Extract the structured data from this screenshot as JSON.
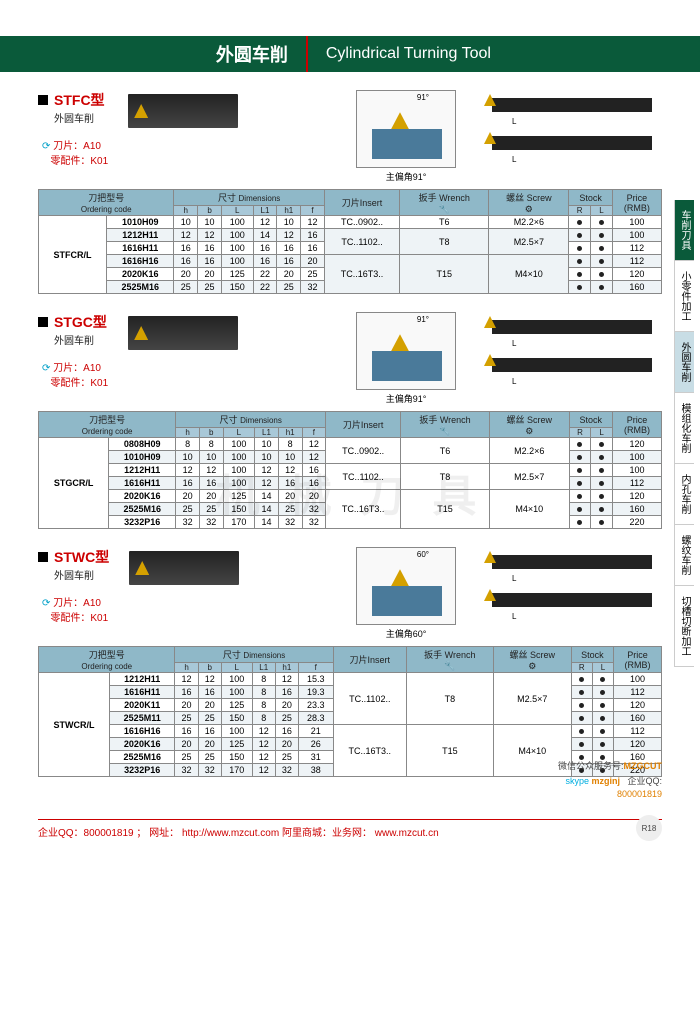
{
  "header": {
    "title_cn": "外圆车削",
    "title_en": "Cylindrical Turning Tool"
  },
  "sections": [
    {
      "id": "stfc",
      "model": "STFC型",
      "sub": "外圆车削",
      "blade": "刀片：A10",
      "parts": "零配件：K01",
      "angle": "主偏角91°",
      "angle_num": "91°",
      "prefix": "STFCR/L",
      "th_order": "刀把型号",
      "th_order_en": "Ordering code",
      "th_dim": "尺寸",
      "th_dim_en": "Dimensions",
      "th_insert": "刀片Insert",
      "th_wrench": "扳手 Wrench",
      "th_screw": "螺丝 Screw",
      "th_stock": "Stock",
      "th_price": "Price",
      "th_price2": "(RMB)",
      "dim_cols": [
        "h",
        "b",
        "L",
        "L1",
        "h1",
        "f"
      ],
      "stock_cols": [
        "R",
        "L"
      ],
      "rows": [
        {
          "code": "1010H09",
          "d": [
            "10",
            "10",
            "100",
            "12",
            "10",
            "12"
          ],
          "ins": "TC..0902..",
          "wr": "T6",
          "sc": "M2.2×6",
          "r": "●",
          "l": "●",
          "p": "100",
          "span": 1
        },
        {
          "code": "1212H11",
          "d": [
            "12",
            "12",
            "100",
            "14",
            "12",
            "16"
          ],
          "ins": "TC..1102..",
          "wr": "T8",
          "sc": "M2.5×7",
          "r": "●",
          "l": "●",
          "p": "100",
          "span": 2,
          "alt": 1
        },
        {
          "code": "1616H11",
          "d": [
            "16",
            "16",
            "100",
            "16",
            "16",
            "16"
          ],
          "r": "●",
          "l": "●",
          "p": "112"
        },
        {
          "code": "1616H16",
          "d": [
            "16",
            "16",
            "100",
            "16",
            "16",
            "20"
          ],
          "ins": "TC..16T3..",
          "wr": "T15",
          "sc": "M4×10",
          "r": "●",
          "l": "●",
          "p": "112",
          "span": 3,
          "alt": 1
        },
        {
          "code": "2020K16",
          "d": [
            "20",
            "20",
            "125",
            "22",
            "20",
            "25"
          ],
          "r": "●",
          "l": "●",
          "p": "120"
        },
        {
          "code": "2525M16",
          "d": [
            "25",
            "25",
            "150",
            "22",
            "25",
            "32"
          ],
          "r": "●",
          "l": "●",
          "p": "160",
          "alt": 1
        }
      ]
    },
    {
      "id": "stgc",
      "model": "STGC型",
      "sub": "外圆车削",
      "blade": "刀片：A10",
      "parts": "零配件：K01",
      "angle": "主偏角91°",
      "angle_num": "91°",
      "prefix": "STGCR/L",
      "rows": [
        {
          "code": "0808H09",
          "d": [
            "8",
            "8",
            "100",
            "10",
            "8",
            "12"
          ],
          "ins": "TC..0902..",
          "wr": "T6",
          "sc": "M2.2×6",
          "r": "●",
          "l": "●",
          "p": "120",
          "span": 2
        },
        {
          "code": "1010H09",
          "d": [
            "10",
            "10",
            "100",
            "10",
            "10",
            "12"
          ],
          "r": "●",
          "l": "●",
          "p": "100",
          "alt": 1
        },
        {
          "code": "1212H11",
          "d": [
            "12",
            "12",
            "100",
            "12",
            "12",
            "16"
          ],
          "ins": "TC..1102..",
          "wr": "T8",
          "sc": "M2.5×7",
          "r": "●",
          "l": "●",
          "p": "100",
          "span": 2
        },
        {
          "code": "1616H11",
          "d": [
            "16",
            "16",
            "100",
            "12",
            "16",
            "16"
          ],
          "r": "●",
          "l": "●",
          "p": "112",
          "alt": 1
        },
        {
          "code": "2020K16",
          "d": [
            "20",
            "20",
            "125",
            "14",
            "20",
            "20"
          ],
          "ins": "TC..16T3..",
          "wr": "T15",
          "sc": "M4×10",
          "r": "●",
          "l": "●",
          "p": "120",
          "span": 3
        },
        {
          "code": "2525M16",
          "d": [
            "25",
            "25",
            "150",
            "14",
            "25",
            "32"
          ],
          "r": "●",
          "l": "●",
          "p": "160",
          "alt": 1
        },
        {
          "code": "3232P16",
          "d": [
            "32",
            "32",
            "170",
            "14",
            "32",
            "32"
          ],
          "r": "●",
          "l": "●",
          "p": "220"
        }
      ]
    },
    {
      "id": "stwc",
      "model": "STWC型",
      "sub": "外圆车削",
      "blade": "刀片：A10",
      "parts": "零配件：K01",
      "angle": "主偏角60°",
      "angle_num": "60°",
      "prefix": "STWCR/L",
      "rows": [
        {
          "code": "1212H11",
          "d": [
            "12",
            "12",
            "100",
            "8",
            "12",
            "15.3"
          ],
          "ins": "TC..1102..",
          "wr": "T8",
          "sc": "M2.5×7",
          "r": "●",
          "l": "●",
          "p": "100",
          "span": 4
        },
        {
          "code": "1616H11",
          "d": [
            "16",
            "16",
            "100",
            "8",
            "16",
            "19.3"
          ],
          "r": "●",
          "l": "●",
          "p": "112",
          "alt": 1
        },
        {
          "code": "2020K11",
          "d": [
            "20",
            "20",
            "125",
            "8",
            "20",
            "23.3"
          ],
          "r": "●",
          "l": "●",
          "p": "120"
        },
        {
          "code": "2525M11",
          "d": [
            "25",
            "25",
            "150",
            "8",
            "25",
            "28.3"
          ],
          "r": "●",
          "l": "●",
          "p": "160",
          "alt": 1
        },
        {
          "code": "1616H16",
          "d": [
            "16",
            "16",
            "100",
            "12",
            "16",
            "21"
          ],
          "ins": "TC..16T3..",
          "wr": "T15",
          "sc": "M4×10",
          "r": "●",
          "l": "●",
          "p": "112",
          "span": 4
        },
        {
          "code": "2020K16",
          "d": [
            "20",
            "20",
            "125",
            "12",
            "20",
            "26"
          ],
          "r": "●",
          "l": "●",
          "p": "120",
          "alt": 1
        },
        {
          "code": "2525M16",
          "d": [
            "25",
            "25",
            "150",
            "12",
            "25",
            "31"
          ],
          "r": "●",
          "l": "●",
          "p": "160"
        },
        {
          "code": "3232P16",
          "d": [
            "32",
            "32",
            "170",
            "12",
            "32",
            "38"
          ],
          "r": "●",
          "l": "●",
          "p": "220",
          "alt": 1
        }
      ]
    }
  ],
  "side_tabs": [
    {
      "t": "车削刀具",
      "cls": "active"
    },
    {
      "t": "小零件加工",
      "cls": ""
    },
    {
      "t": "外圆车削",
      "cls": "light"
    },
    {
      "t": "模组化车削",
      "cls": ""
    },
    {
      "t": "内孔车削",
      "cls": ""
    },
    {
      "t": "螺纹车削",
      "cls": ""
    },
    {
      "t": "切槽切断加工",
      "cls": ""
    }
  ],
  "contact": {
    "wechat_lbl": "微信公众服务号:",
    "wechat": "MZGCUT",
    "skype_lbl": "skype",
    "skype": "mzginj",
    "qq_lbl": "企业QQ:",
    "qq": "800001819",
    "line": "企业QQ：800001819 ；   网址：  http://www.mzcut.com     阿里商城：业务网：  www.mzcut.cn",
    "badge": "R18"
  },
  "watermark": "机 械 刀 具",
  "colors": {
    "header": "#0a5a3a",
    "accent": "#c00",
    "th": "#8fb8c8",
    "th2": "#a8c8d8",
    "alt": "#eef3f6"
  }
}
